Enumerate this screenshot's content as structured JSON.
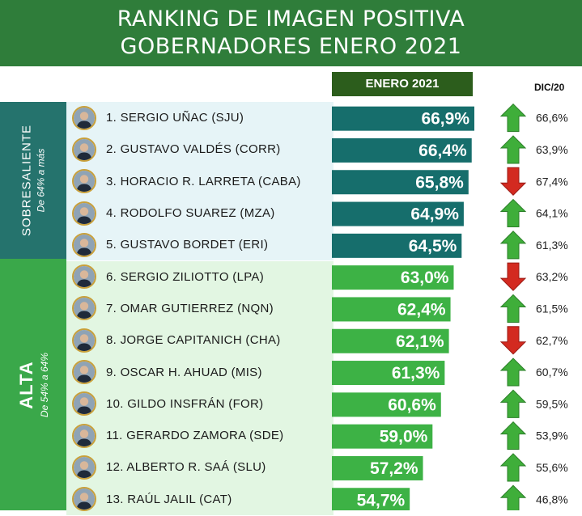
{
  "title": {
    "line1": "RANKING DE IMAGEN POSITIVA",
    "line2": "GOBERNADORES ENERO 2021"
  },
  "headers": {
    "current": "ENERO 2021",
    "previous": "DIC/20"
  },
  "groups": [
    {
      "name": "SOBRESALIENTE",
      "range": "De 64% a más",
      "color": "#25736d"
    },
    {
      "name": "ALTA",
      "range": "De 54% a 64%",
      "color": "#3aa84a"
    }
  ],
  "colors": {
    "sobresaliente_bar": "#166e6c",
    "alta_bar": "#3db245",
    "arrow_up": "#3fae3a",
    "arrow_down": "#d32a20",
    "banner": "#2f7d3a"
  },
  "chart_data": {
    "type": "bar",
    "orientation": "horizontal",
    "title": "RANKING DE IMAGEN POSITIVA GOBERNADORES ENERO 2021",
    "categories": [
      "1. SERGIO UÑAC (SJU)",
      "2. GUSTAVO VALDÉS  (CORR)",
      "3. HORACIO R. LARRETA (CABA)",
      "4. RODOLFO SUAREZ (MZA)",
      "5. GUSTAVO BORDET (ERI)",
      "6. SERGIO ZILIOTTO (LPA)",
      "7. OMAR GUTIERREZ (NQN)",
      "8. JORGE CAPITANICH (CHA)",
      "9. OSCAR H. AHUAD  (MIS)",
      "10. GILDO INSFRÁN (FOR)",
      "11. GERARDO ZAMORA (SDE)",
      "12. ALBERTO R. SAÁ (SLU)",
      "13. RAÚL JALIL (CAT)"
    ],
    "group_index": [
      0,
      0,
      0,
      0,
      0,
      1,
      1,
      1,
      1,
      1,
      1,
      1,
      1
    ],
    "series": [
      {
        "name": "ENERO 2021",
        "values": [
          66.9,
          66.4,
          65.8,
          64.9,
          64.5,
          63.0,
          62.4,
          62.1,
          61.3,
          60.6,
          59.0,
          57.2,
          54.7
        ],
        "labels": [
          "66,9%",
          "66,4%",
          "65,8%",
          "64,9%",
          "64,5%",
          "63,0%",
          "62,4%",
          "62,1%",
          "61,3%",
          "60,6%",
          "59,0%",
          "57,2%",
          "54,7%"
        ]
      },
      {
        "name": "DIC/20",
        "values": [
          66.6,
          63.9,
          67.4,
          64.1,
          61.3,
          63.2,
          61.5,
          62.7,
          60.7,
          59.5,
          53.9,
          55.6,
          46.8
        ],
        "labels": [
          "66,6%",
          "63,9%",
          "67,4%",
          "64,1%",
          "61,3%",
          "63,2%",
          "61,5%",
          "62,7%",
          "60,7%",
          "59,5%",
          "53,9%",
          "55,6%",
          "46,8%"
        ]
      }
    ],
    "trend": [
      "up",
      "up",
      "down",
      "up",
      "up",
      "down",
      "up",
      "down",
      "up",
      "up",
      "up",
      "up",
      "up"
    ]
  }
}
